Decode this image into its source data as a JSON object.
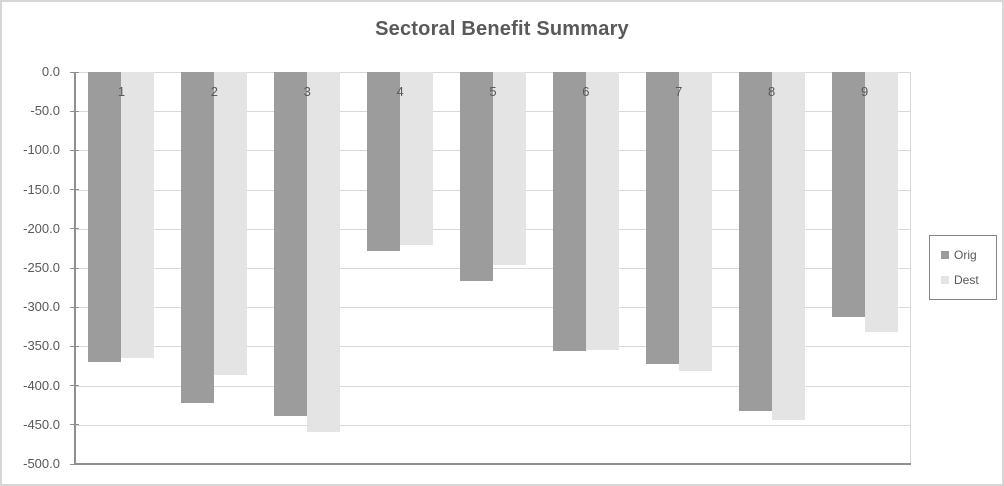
{
  "chart_data": {
    "type": "bar",
    "title": "Sectoral Benefit Summary",
    "categories": [
      "1",
      "2",
      "3",
      "4",
      "5",
      "6",
      "7",
      "8",
      "9"
    ],
    "series": [
      {
        "name": "Orig",
        "color": "#9c9c9c",
        "values": [
          -370,
          -422,
          -439,
          -228,
          -266,
          -356,
          -372,
          -433,
          -312
        ]
      },
      {
        "name": "Dest",
        "color": "#e4e4e4",
        "values": [
          -365,
          -386,
          -459,
          -221,
          -246,
          -355,
          -382,
          -444,
          -331
        ]
      }
    ],
    "xlabel": "",
    "ylabel": "",
    "ylim": [
      -500,
      0
    ],
    "ytick_step": 50,
    "ytick_labels": [
      "0.0",
      "-50.0",
      "-100.0",
      "-150.0",
      "-200.0",
      "-250.0",
      "-300.0",
      "-350.0",
      "-400.0",
      "-450.0",
      "-500.0"
    ],
    "grid": true,
    "legend_position": "right",
    "legend_items": [
      "Orig",
      "Dest"
    ]
  },
  "style": {
    "text_color": "#595959",
    "gridline_color": "#d9d9d9",
    "axis_line_color": "#8f8f8f",
    "chart_border_color": "#d6d6d6",
    "legend_border_color": "#848484",
    "background": "#ffffff"
  }
}
